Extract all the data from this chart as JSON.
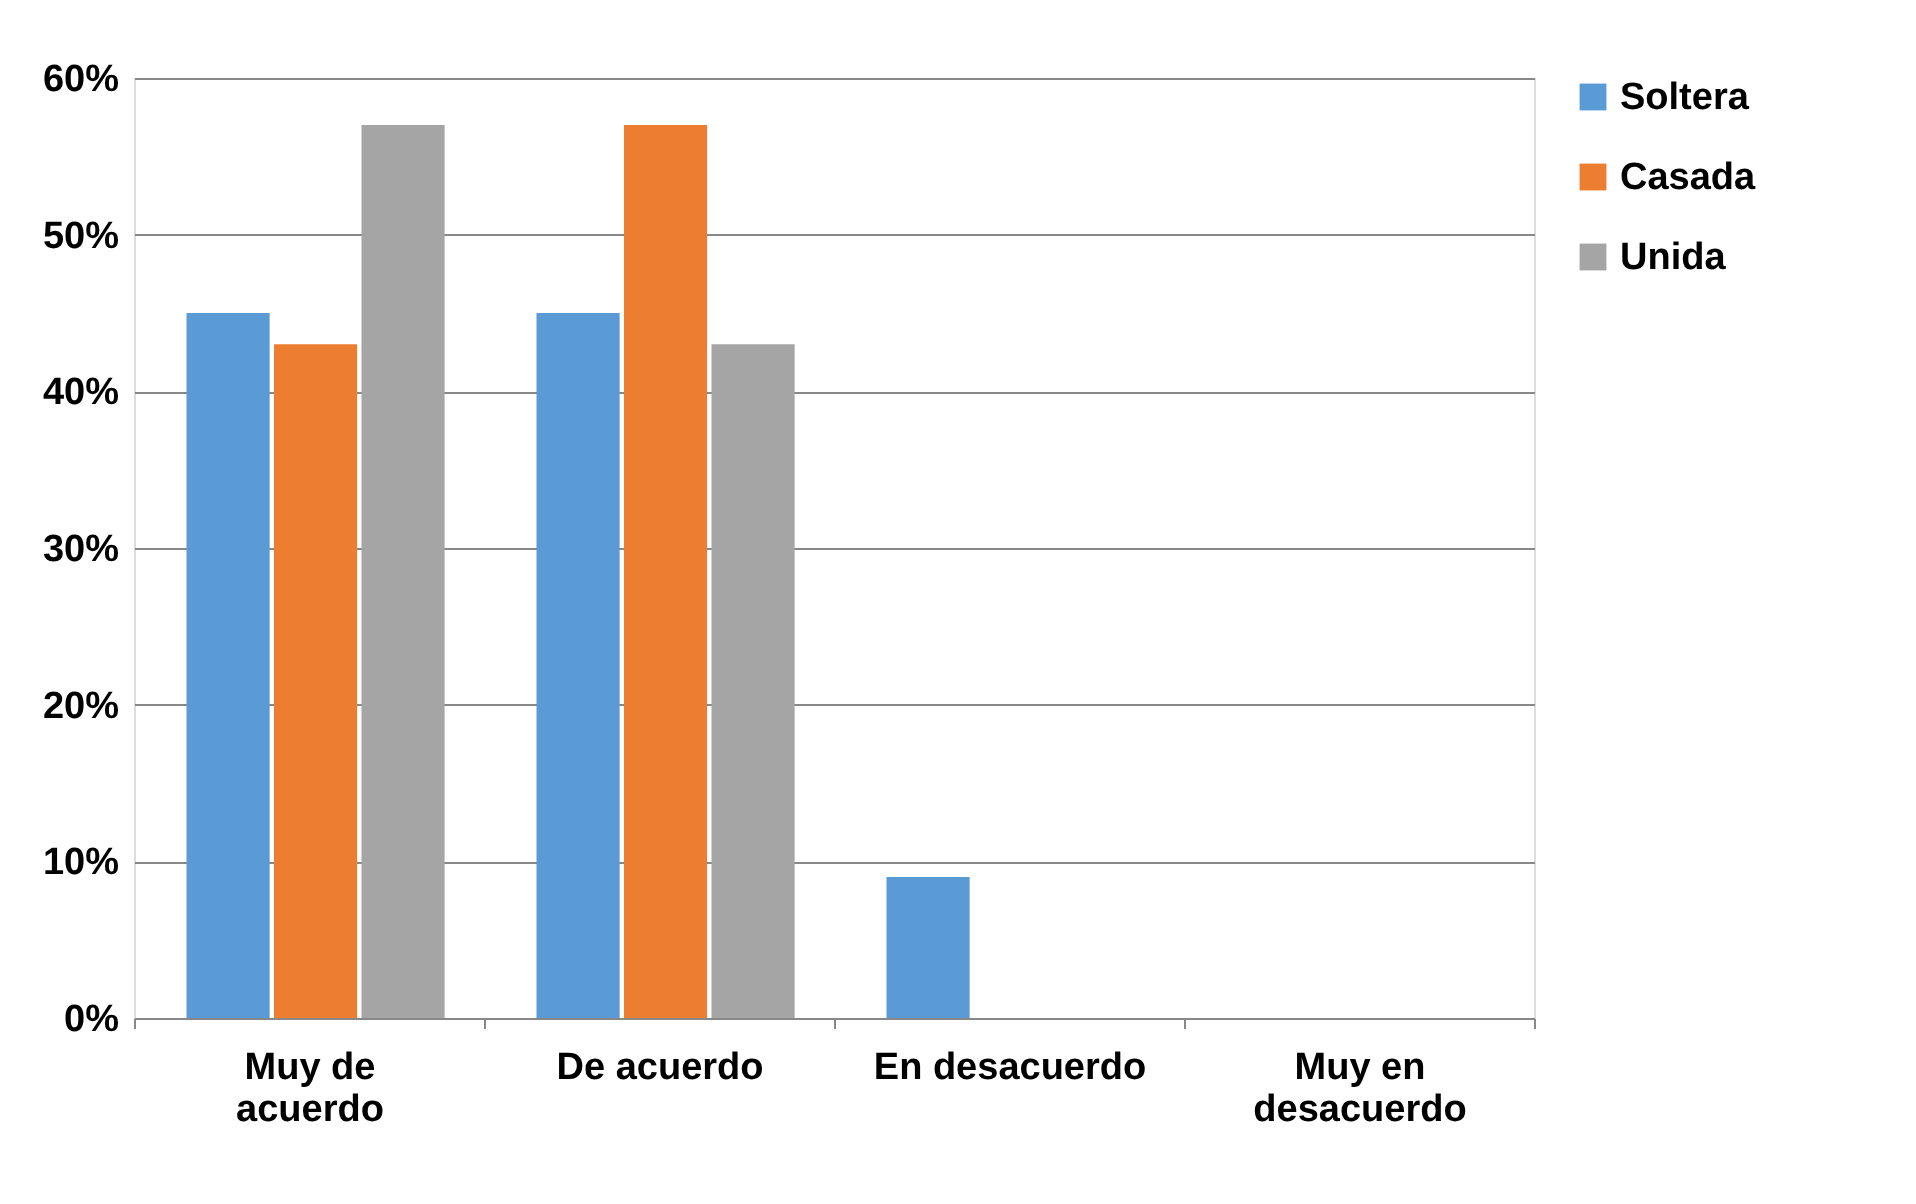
{
  "chart_data": {
    "type": "bar",
    "categories": [
      "Muy de acuerdo",
      "De acuerdo",
      "En desacuerdo",
      "Muy en desacuerdo"
    ],
    "series": [
      {
        "name": "Soltera",
        "color": "#5b9bd5",
        "values": [
          45,
          45,
          9,
          0
        ]
      },
      {
        "name": "Casada",
        "color": "#ed7d31",
        "values": [
          43,
          57,
          0,
          0
        ]
      },
      {
        "name": "Unida",
        "color": "#a5a5a5",
        "values": [
          57,
          43,
          0,
          0
        ]
      }
    ],
    "ylim": [
      0,
      60
    ],
    "yticks": [
      {
        "value": 0,
        "label": "0%"
      },
      {
        "value": 10,
        "label": "10%"
      },
      {
        "value": 20,
        "label": "20%"
      },
      {
        "value": 30,
        "label": "30%"
      },
      {
        "value": 40,
        "label": "40%"
      },
      {
        "value": 50,
        "label": "50%"
      },
      {
        "value": 60,
        "label": "60%"
      }
    ],
    "grid": "y",
    "legend": "right"
  }
}
